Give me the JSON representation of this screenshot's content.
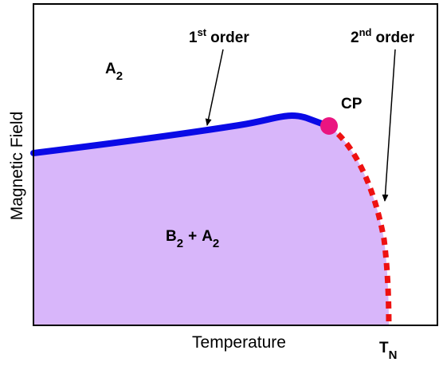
{
  "axes": {
    "x_label": "Temperature",
    "y_label": "Magnetic Field"
  },
  "regions": [
    {
      "name": "A",
      "sub": "2"
    },
    {
      "name": "B",
      "sub": "2",
      "joiner": "+",
      "name2": "A",
      "sub2": "2"
    }
  ],
  "annotations": [
    {
      "num": "1",
      "sup": "st",
      "text": "order"
    },
    {
      "num": "2",
      "sup": "nd",
      "text": "order"
    }
  ],
  "point": "CP",
  "tick": {
    "main": "T",
    "sub": "N"
  }
}
